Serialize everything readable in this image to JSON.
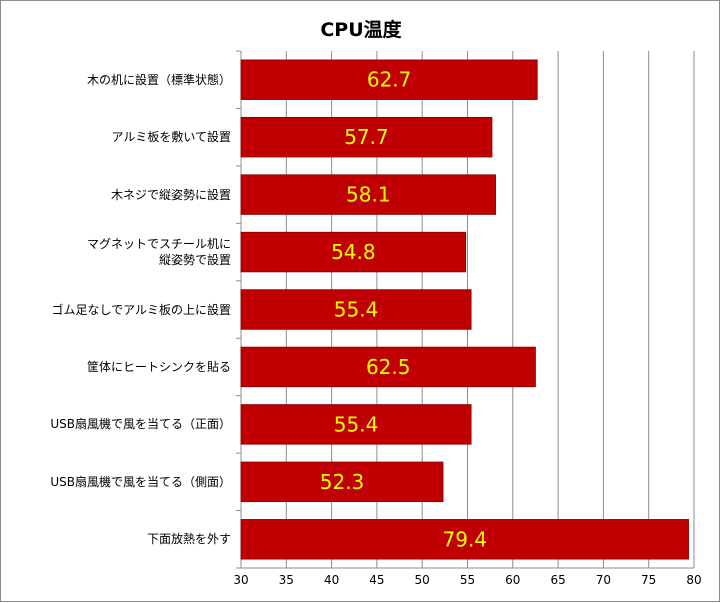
{
  "chart_data": {
    "type": "bar",
    "orientation": "horizontal",
    "title": "CPU温度",
    "categories": [
      "木の机に設置（標準状態）",
      "アルミ板を敷いて設置",
      "木ネジで縦姿勢に設置",
      "マグネットでスチール机に\n縦姿勢で設置",
      "ゴム足なしでアルミ板の上に設置",
      "筐体にヒートシンクを貼る",
      "USB扇風機で風を当てる（正面）",
      "USB扇風機で風を当てる（側面）",
      "下面放熱を外す"
    ],
    "values": [
      62.7,
      57.7,
      58.1,
      54.8,
      55.4,
      62.5,
      55.4,
      52.3,
      79.4
    ],
    "data_labels": [
      "62.7",
      "57.7",
      "58.1",
      "54.8",
      "55.4",
      "62.5",
      "55.4",
      "52.3",
      "79.4"
    ],
    "xlim": [
      30,
      80
    ],
    "xticks": [
      "30",
      "35",
      "40",
      "45",
      "50",
      "55",
      "60",
      "65",
      "70",
      "75",
      "80"
    ],
    "xlabel": "",
    "ylabel": "",
    "grid": "vertical",
    "legend": "none"
  },
  "colors": {
    "bar_fill": "#c00000",
    "bar_stroke": "#8b0000",
    "data_label": "#ffff00",
    "grid": "#8c8c8c",
    "frame": "#8c8c8c"
  }
}
